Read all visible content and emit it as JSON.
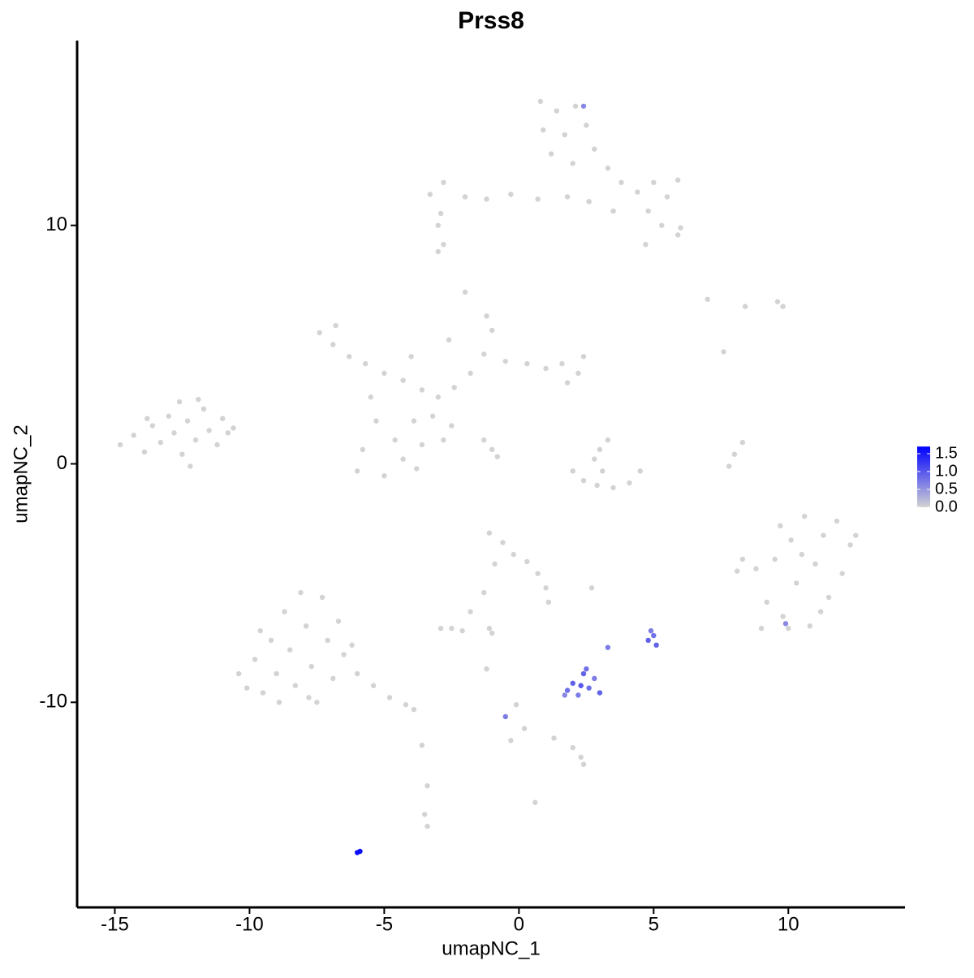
{
  "chart_data": {
    "type": "scatter",
    "title": "Prss8",
    "x_label": "umapNC_1",
    "y_label": "umapNC_2",
    "x": [
      -14.8,
      -14.3,
      -13.9,
      -13.6,
      -13.3,
      -13.0,
      -12.8,
      -12.5,
      -12.3,
      -12.0,
      -11.7,
      -11.5,
      -11.2,
      -11.0,
      -10.8,
      -12.6,
      -13.8,
      -12.2,
      -11.9,
      -10.6,
      -7.4,
      -6.9,
      -6.3,
      -5.7,
      -5.0,
      -4.3,
      -3.6,
      -3.0,
      -2.4,
      -1.8,
      -1.3,
      -1.0,
      -1.2,
      -0.5,
      0.3,
      1.0,
      1.6,
      2.2,
      2.4,
      1.8,
      -2.0,
      -2.6,
      -4.0,
      -5.3,
      -5.8,
      -6.0,
      -5.0,
      -4.3,
      -3.6,
      -3.9,
      -4.6,
      -3.8,
      -3.2,
      -2.5,
      -1.3,
      -1.0,
      -0.8,
      -2.8,
      -5.5,
      -6.8,
      0.8,
      1.4,
      2.1,
      0.9,
      1.7,
      2.5,
      1.2,
      2.0,
      2.8,
      3.3,
      3.8,
      4.4,
      5.0,
      5.5,
      5.9,
      4.8,
      5.3,
      5.9,
      6.0,
      4.7,
      3.5,
      2.6,
      1.8,
      0.7,
      -0.3,
      -1.2,
      -2.0,
      -2.8,
      -3.3,
      -2.9,
      -3.0,
      -2.8,
      -10.4,
      -10.1,
      -9.8,
      -9.5,
      -9.2,
      -9.0,
      -8.7,
      -8.5,
      -8.3,
      -8.1,
      -7.9,
      -7.7,
      -7.5,
      -7.3,
      -7.1,
      -6.9,
      -6.7,
      -8.9,
      -9.6,
      -7.8,
      -6.5,
      -6.0,
      -5.4,
      -4.8,
      -4.2,
      -3.9,
      -6.2,
      8.8,
      9.2,
      9.5,
      9.8,
      10.1,
      10.3,
      10.6,
      10.8,
      11.0,
      11.3,
      11.5,
      11.8,
      12.0,
      12.3,
      12.5,
      9.0,
      10.0,
      10.5,
      11.2,
      9.7,
      8.3,
      8.1,
      2.0,
      2.4,
      2.9,
      3.5,
      4.1,
      4.5,
      3.0,
      3.3,
      3.1,
      2.8,
      7.8,
      8.0,
      8.3,
      -1.1,
      -0.6,
      -0.2,
      0.3,
      0.7,
      1.0,
      1.1,
      -0.9,
      -1.3,
      -1.8,
      -2.5,
      -2.9,
      -2.1,
      -1.0,
      2.7,
      -0.1,
      0.2,
      -0.3,
      1.3,
      2.0,
      2.4,
      2.3,
      0.6,
      -3.4,
      -3.5,
      -3.4,
      -3.6,
      7.0,
      8.4,
      9.6,
      9.8,
      7.6,
      -1.1,
      -1.2,
      -3.0,
      1.8,
      2.0,
      2.2,
      2.4,
      2.6,
      2.8,
      3.0,
      2.3,
      1.7,
      2.5,
      3.3,
      4.8,
      5.0,
      5.1,
      4.9,
      2.4,
      9.9,
      -0.5,
      -6.0,
      -5.9
    ],
    "y": [
      0.8,
      1.2,
      0.5,
      1.6,
      0.9,
      2.0,
      1.3,
      0.4,
      1.8,
      1.0,
      2.3,
      1.4,
      0.8,
      1.9,
      1.3,
      2.6,
      1.9,
      -0.1,
      2.7,
      1.5,
      5.5,
      5.0,
      4.5,
      4.2,
      3.8,
      3.5,
      3.1,
      2.8,
      3.2,
      3.8,
      4.6,
      5.6,
      6.2,
      4.3,
      4.2,
      4.0,
      4.2,
      3.8,
      4.5,
      3.4,
      7.2,
      5.2,
      4.5,
      1.8,
      0.6,
      -0.3,
      -0.5,
      0.2,
      0.8,
      1.8,
      1.0,
      -0.2,
      2.0,
      1.6,
      1.0,
      0.6,
      0.3,
      1.0,
      2.8,
      5.8,
      15.2,
      14.8,
      15.0,
      14.0,
      13.8,
      14.2,
      13.0,
      12.6,
      13.2,
      12.4,
      11.8,
      11.4,
      11.8,
      11.2,
      11.9,
      10.6,
      10.0,
      9.6,
      9.9,
      9.2,
      10.6,
      11.0,
      11.2,
      11.1,
      11.3,
      11.1,
      11.2,
      11.8,
      11.3,
      10.5,
      8.9,
      9.2,
      -8.8,
      -9.4,
      -8.2,
      -9.6,
      -7.4,
      -8.8,
      -6.2,
      -7.8,
      -9.3,
      -5.4,
      -6.8,
      -8.5,
      -10.0,
      -5.6,
      -7.4,
      -9.0,
      -6.6,
      -10.0,
      -7.0,
      -9.8,
      -8.0,
      -8.8,
      -9.3,
      -9.8,
      -10.1,
      -10.3,
      -7.6,
      -4.4,
      -5.8,
      -4.0,
      -6.4,
      -3.2,
      -5.0,
      -2.2,
      -6.8,
      -4.2,
      -3.0,
      -5.6,
      -2.4,
      -4.6,
      -3.4,
      -3.0,
      -6.9,
      -6.9,
      -3.8,
      -6.2,
      -2.6,
      -4.0,
      -4.5,
      -0.3,
      -0.7,
      -0.9,
      -1.0,
      -0.8,
      -0.3,
      0.6,
      1.0,
      -0.3,
      0.2,
      -0.1,
      0.4,
      0.9,
      -2.9,
      -3.3,
      -3.8,
      -4.1,
      -4.6,
      -5.2,
      -5.8,
      -4.2,
      -5.4,
      -6.2,
      -6.9,
      -6.9,
      -7.0,
      -7.1,
      -5.2,
      -10.1,
      -11.1,
      -11.6,
      -11.5,
      -11.9,
      -12.6,
      -12.3,
      -14.2,
      -13.5,
      -14.7,
      -15.2,
      -11.8,
      6.9,
      6.6,
      6.8,
      6.6,
      4.7,
      -6.9,
      -8.6,
      10.0,
      -9.5,
      -9.2,
      -9.7,
      -8.8,
      -9.4,
      -9.0,
      -9.6,
      -9.3,
      -9.7,
      -8.6,
      -7.7,
      -7.4,
      -7.2,
      -7.6,
      -7.0,
      15.0,
      -6.7,
      -10.6,
      -16.3,
      -16.25
    ],
    "values": [
      0,
      0,
      0,
      0,
      0,
      0,
      0,
      0,
      0,
      0,
      0,
      0,
      0,
      0,
      0,
      0,
      0,
      0,
      0,
      0,
      0,
      0,
      0,
      0,
      0,
      0,
      0,
      0,
      0,
      0,
      0,
      0,
      0,
      0,
      0,
      0,
      0,
      0,
      0,
      0,
      0,
      0,
      0,
      0,
      0,
      0,
      0,
      0,
      0,
      0,
      0,
      0,
      0,
      0,
      0,
      0,
      0,
      0,
      0,
      0,
      0,
      0,
      0,
      0,
      0,
      0,
      0,
      0,
      0,
      0,
      0,
      0,
      0,
      0,
      0,
      0,
      0,
      0,
      0,
      0,
      0,
      0,
      0,
      0,
      0,
      0,
      0,
      0,
      0,
      0,
      0,
      0,
      0,
      0,
      0,
      0,
      0,
      0,
      0,
      0,
      0,
      0,
      0,
      0,
      0,
      0,
      0,
      0,
      0,
      0,
      0,
      0,
      0,
      0,
      0,
      0,
      0,
      0,
      0,
      0,
      0,
      0,
      0,
      0,
      0,
      0,
      0,
      0,
      0,
      0,
      0,
      0,
      0,
      0,
      0,
      0,
      0,
      0,
      0,
      0,
      0,
      0,
      0,
      0,
      0,
      0,
      0,
      0,
      0,
      0,
      0,
      0,
      0,
      0,
      0,
      0,
      0,
      0,
      0,
      0,
      0,
      0,
      0,
      0,
      0,
      0,
      0,
      0,
      0,
      0,
      0,
      0,
      0,
      0,
      0,
      0,
      0,
      0,
      0,
      0,
      0,
      0,
      0,
      0,
      0,
      0,
      0,
      0,
      0,
      0.8,
      0.9,
      0.7,
      0.9,
      0.8,
      0.7,
      0.9,
      1.0,
      0.6,
      0.8,
      0.7,
      0.9,
      0.8,
      0.9,
      0.7,
      0.6,
      0.6,
      0.7,
      1.6,
      1.6
    ],
    "color_low": "#d3d3d3",
    "color_high": "#0000ff",
    "clim": [
      0,
      1.7
    ],
    "cticks": [
      {
        "value": 0,
        "label": "0.0"
      },
      {
        "value": 0.5,
        "label": "0.5"
      },
      {
        "value": 1,
        "label": "1.0"
      },
      {
        "value": 1.5,
        "label": "1.5"
      }
    ],
    "xlim": [
      -16.4,
      14.33
    ],
    "ylim": [
      -18.6,
      17.75
    ],
    "xticks": [
      -15,
      -10,
      -5,
      0,
      5,
      10
    ],
    "yticks": [
      -10,
      0,
      10
    ]
  }
}
